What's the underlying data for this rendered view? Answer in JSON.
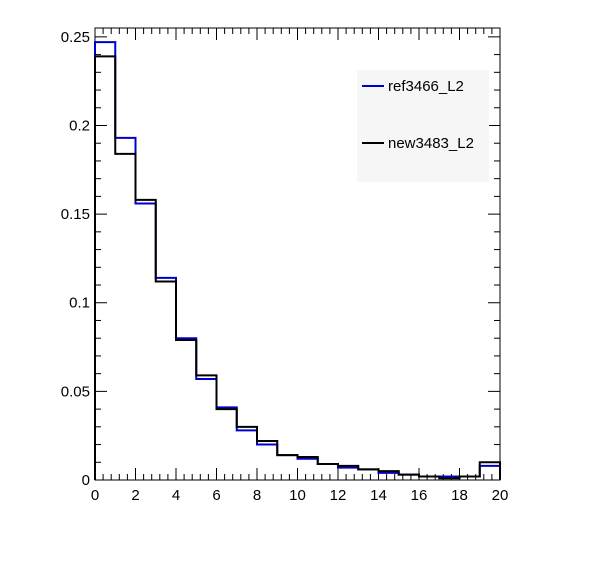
{
  "chart_data": {
    "type": "line",
    "drawstyle": "steps",
    "xlim": [
      0,
      20
    ],
    "ylim": [
      0,
      0.255
    ],
    "x_ticks": [
      0,
      2,
      4,
      6,
      8,
      10,
      12,
      14,
      16,
      18,
      20
    ],
    "x_tick_labels": [
      "0",
      "2",
      "4",
      "6",
      "8",
      "10",
      "12",
      "14",
      "16",
      "18",
      "20"
    ],
    "y_ticks": [
      0,
      0.05,
      0.1,
      0.15,
      0.2,
      0.25
    ],
    "y_tick_labels": [
      "0",
      "0.05",
      "0.1",
      "0.15",
      "0.2",
      "0.25"
    ],
    "bin_edges": [
      0,
      1,
      2,
      3,
      4,
      5,
      6,
      7,
      8,
      9,
      10,
      11,
      12,
      13,
      14,
      15,
      16,
      17,
      18,
      19,
      20
    ],
    "series": [
      {
        "name": "ref3466_L2",
        "color": "#0000cc",
        "values": [
          0.247,
          0.193,
          0.156,
          0.114,
          0.08,
          0.057,
          0.041,
          0.028,
          0.02,
          0.014,
          0.012,
          0.009,
          0.007,
          0.006,
          0.004,
          0.003,
          0.002,
          0.002,
          0.002,
          0.008
        ]
      },
      {
        "name": "new3483_L2",
        "color": "#000000",
        "values": [
          0.239,
          0.184,
          0.158,
          0.112,
          0.079,
          0.059,
          0.04,
          0.03,
          0.022,
          0.014,
          0.013,
          0.009,
          0.008,
          0.006,
          0.005,
          0.003,
          0.002,
          0.001,
          0.002,
          0.01
        ]
      }
    ],
    "legend": {
      "placement": "top-right"
    }
  }
}
